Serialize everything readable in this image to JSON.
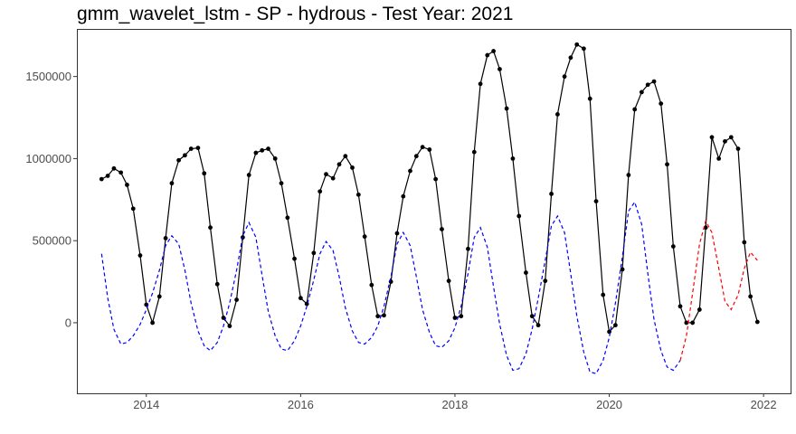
{
  "chart_data": {
    "type": "line",
    "title": "gmm_wavelet_lstm - SP - hydrous - Test Year: 2021",
    "xlabel": "",
    "ylabel": "",
    "xlim": [
      2013.1,
      2022.35
    ],
    "ylim": [
      -430000,
      1790000
    ],
    "x_ticks": [
      2014,
      2016,
      2018,
      2020,
      2022
    ],
    "y_ticks": [
      0,
      500000,
      1000000,
      1500000
    ],
    "grid": false,
    "legend": "none",
    "colors": {
      "observed": "#000000",
      "fitted": "#0000ff",
      "forecast": "#ff0000"
    },
    "series": [
      {
        "style": "solid-with-points",
        "color": "#000000",
        "points": [
          [
            2013.42,
            875000
          ],
          [
            2013.5,
            895000
          ],
          [
            2013.58,
            940000
          ],
          [
            2013.67,
            915000
          ],
          [
            2013.75,
            840000
          ],
          [
            2013.83,
            695000
          ],
          [
            2013.92,
            410000
          ],
          [
            2014.0,
            110000
          ],
          [
            2014.08,
            0
          ],
          [
            2014.17,
            160000
          ],
          [
            2014.25,
            515000
          ],
          [
            2014.33,
            850000
          ],
          [
            2014.42,
            990000
          ],
          [
            2014.5,
            1020000
          ],
          [
            2014.58,
            1060000
          ],
          [
            2014.67,
            1065000
          ],
          [
            2014.75,
            910000
          ],
          [
            2014.83,
            580000
          ],
          [
            2014.92,
            235000
          ],
          [
            2015.0,
            30000
          ],
          [
            2015.08,
            -20000
          ],
          [
            2015.17,
            140000
          ],
          [
            2015.25,
            520000
          ],
          [
            2015.33,
            900000
          ],
          [
            2015.42,
            1035000
          ],
          [
            2015.5,
            1050000
          ],
          [
            2015.58,
            1060000
          ],
          [
            2015.67,
            1000000
          ],
          [
            2015.75,
            850000
          ],
          [
            2015.83,
            640000
          ],
          [
            2015.92,
            390000
          ],
          [
            2016.0,
            150000
          ],
          [
            2016.08,
            115000
          ],
          [
            2016.17,
            425000
          ],
          [
            2016.25,
            800000
          ],
          [
            2016.33,
            905000
          ],
          [
            2016.42,
            880000
          ],
          [
            2016.5,
            965000
          ],
          [
            2016.58,
            1015000
          ],
          [
            2016.67,
            945000
          ],
          [
            2016.75,
            780000
          ],
          [
            2016.83,
            525000
          ],
          [
            2016.92,
            230000
          ],
          [
            2017.0,
            40000
          ],
          [
            2017.08,
            45000
          ],
          [
            2017.17,
            250000
          ],
          [
            2017.25,
            545000
          ],
          [
            2017.33,
            770000
          ],
          [
            2017.42,
            925000
          ],
          [
            2017.5,
            1015000
          ],
          [
            2017.58,
            1070000
          ],
          [
            2017.67,
            1055000
          ],
          [
            2017.75,
            875000
          ],
          [
            2017.83,
            570000
          ],
          [
            2017.92,
            255000
          ],
          [
            2018.0,
            30000
          ],
          [
            2018.08,
            40000
          ],
          [
            2018.17,
            450000
          ],
          [
            2018.25,
            1040000
          ],
          [
            2018.33,
            1455000
          ],
          [
            2018.42,
            1630000
          ],
          [
            2018.5,
            1655000
          ],
          [
            2018.58,
            1545000
          ],
          [
            2018.67,
            1305000
          ],
          [
            2018.75,
            1000000
          ],
          [
            2018.83,
            650000
          ],
          [
            2018.92,
            305000
          ],
          [
            2019.0,
            40000
          ],
          [
            2019.08,
            -15000
          ],
          [
            2019.17,
            255000
          ],
          [
            2019.25,
            785000
          ],
          [
            2019.33,
            1270000
          ],
          [
            2019.42,
            1500000
          ],
          [
            2019.5,
            1615000
          ],
          [
            2019.58,
            1695000
          ],
          [
            2019.67,
            1670000
          ],
          [
            2019.75,
            1365000
          ],
          [
            2019.83,
            740000
          ],
          [
            2019.92,
            170000
          ],
          [
            2020.0,
            -55000
          ],
          [
            2020.08,
            -15000
          ],
          [
            2020.17,
            325000
          ],
          [
            2020.25,
            900000
          ],
          [
            2020.33,
            1300000
          ],
          [
            2020.42,
            1405000
          ],
          [
            2020.5,
            1450000
          ],
          [
            2020.58,
            1470000
          ],
          [
            2020.67,
            1335000
          ],
          [
            2020.75,
            965000
          ],
          [
            2020.83,
            465000
          ],
          [
            2020.92,
            100000
          ],
          [
            2021.0,
            0
          ],
          [
            2021.08,
            0
          ],
          [
            2021.17,
            80000
          ],
          [
            2021.25,
            580000
          ],
          [
            2021.33,
            1130000
          ],
          [
            2021.42,
            1000000
          ],
          [
            2021.5,
            1105000
          ],
          [
            2021.58,
            1130000
          ],
          [
            2021.67,
            1060000
          ],
          [
            2021.75,
            490000
          ],
          [
            2021.83,
            160000
          ],
          [
            2021.92,
            5000
          ]
        ]
      },
      {
        "style": "dashed",
        "color": "#0000ff",
        "points": [
          [
            2013.42,
            420000
          ],
          [
            2013.5,
            150000
          ],
          [
            2013.58,
            -40000
          ],
          [
            2013.67,
            -130000
          ],
          [
            2013.75,
            -120000
          ],
          [
            2013.83,
            -80000
          ],
          [
            2013.92,
            -10000
          ],
          [
            2014.0,
            80000
          ],
          [
            2014.08,
            180000
          ],
          [
            2014.17,
            320000
          ],
          [
            2014.25,
            470000
          ],
          [
            2014.33,
            530000
          ],
          [
            2014.42,
            480000
          ],
          [
            2014.5,
            320000
          ],
          [
            2014.58,
            120000
          ],
          [
            2014.67,
            -50000
          ],
          [
            2014.75,
            -140000
          ],
          [
            2014.83,
            -170000
          ],
          [
            2014.92,
            -120000
          ],
          [
            2015.0,
            -20000
          ],
          [
            2015.08,
            120000
          ],
          [
            2015.17,
            320000
          ],
          [
            2015.25,
            530000
          ],
          [
            2015.33,
            610000
          ],
          [
            2015.42,
            520000
          ],
          [
            2015.5,
            290000
          ],
          [
            2015.58,
            70000
          ],
          [
            2015.67,
            -80000
          ],
          [
            2015.75,
            -160000
          ],
          [
            2015.83,
            -170000
          ],
          [
            2015.92,
            -110000
          ],
          [
            2016.0,
            -20000
          ],
          [
            2016.08,
            100000
          ],
          [
            2016.17,
            260000
          ],
          [
            2016.25,
            420000
          ],
          [
            2016.33,
            495000
          ],
          [
            2016.42,
            440000
          ],
          [
            2016.5,
            280000
          ],
          [
            2016.58,
            90000
          ],
          [
            2016.67,
            -50000
          ],
          [
            2016.75,
            -120000
          ],
          [
            2016.83,
            -130000
          ],
          [
            2016.92,
            -90000
          ],
          [
            2017.0,
            -20000
          ],
          [
            2017.08,
            100000
          ],
          [
            2017.17,
            280000
          ],
          [
            2017.25,
            480000
          ],
          [
            2017.33,
            550000
          ],
          [
            2017.42,
            470000
          ],
          [
            2017.5,
            280000
          ],
          [
            2017.58,
            80000
          ],
          [
            2017.67,
            -60000
          ],
          [
            2017.75,
            -140000
          ],
          [
            2017.83,
            -150000
          ],
          [
            2017.92,
            -110000
          ],
          [
            2018.0,
            -30000
          ],
          [
            2018.08,
            100000
          ],
          [
            2018.17,
            300000
          ],
          [
            2018.25,
            520000
          ],
          [
            2018.33,
            580000
          ],
          [
            2018.42,
            460000
          ],
          [
            2018.5,
            220000
          ],
          [
            2018.58,
            -10000
          ],
          [
            2018.67,
            -200000
          ],
          [
            2018.75,
            -290000
          ],
          [
            2018.83,
            -280000
          ],
          [
            2018.92,
            -190000
          ],
          [
            2019.0,
            -40000
          ],
          [
            2019.08,
            150000
          ],
          [
            2019.17,
            380000
          ],
          [
            2019.25,
            590000
          ],
          [
            2019.33,
            650000
          ],
          [
            2019.42,
            550000
          ],
          [
            2019.5,
            300000
          ],
          [
            2019.58,
            40000
          ],
          [
            2019.67,
            -180000
          ],
          [
            2019.75,
            -300000
          ],
          [
            2019.83,
            -310000
          ],
          [
            2019.92,
            -230000
          ],
          [
            2020.0,
            -90000
          ],
          [
            2020.08,
            120000
          ],
          [
            2020.17,
            400000
          ],
          [
            2020.25,
            680000
          ],
          [
            2020.33,
            735000
          ],
          [
            2020.42,
            600000
          ],
          [
            2020.5,
            300000
          ],
          [
            2020.58,
            20000
          ],
          [
            2020.67,
            -170000
          ],
          [
            2020.75,
            -270000
          ],
          [
            2020.83,
            -290000
          ],
          [
            2020.92,
            -230000
          ]
        ]
      },
      {
        "style": "dashed",
        "color": "#ff0000",
        "points": [
          [
            2020.92,
            -230000
          ],
          [
            2021.0,
            -80000
          ],
          [
            2021.08,
            180000
          ],
          [
            2021.17,
            480000
          ],
          [
            2021.25,
            620000
          ],
          [
            2021.33,
            550000
          ],
          [
            2021.42,
            330000
          ],
          [
            2021.5,
            130000
          ],
          [
            2021.58,
            80000
          ],
          [
            2021.67,
            170000
          ],
          [
            2021.75,
            330000
          ],
          [
            2021.83,
            430000
          ],
          [
            2021.92,
            380000
          ]
        ]
      }
    ]
  }
}
